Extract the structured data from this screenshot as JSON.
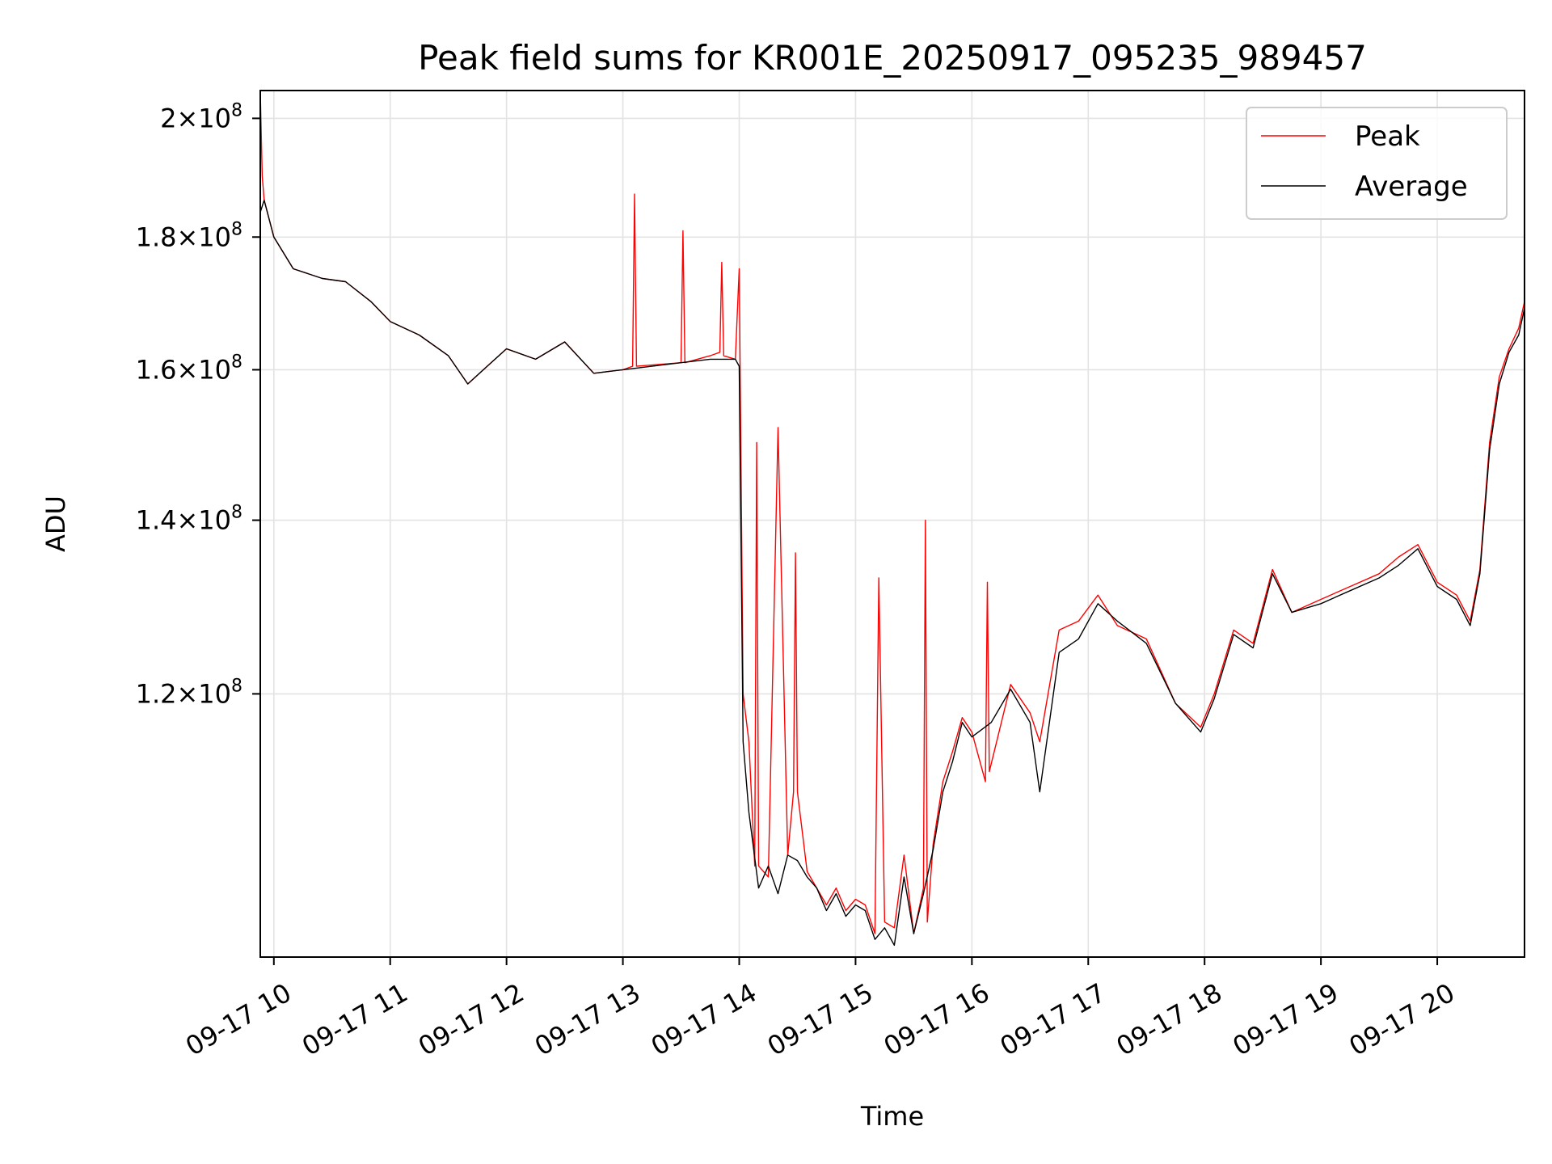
{
  "chart_data": {
    "type": "line",
    "title": "Peak field sums for KR001E_20250917_095235_989457",
    "xlabel": "Time",
    "ylabel": "ADU",
    "y_scale": "log",
    "grid": true,
    "legend_position": "top-right",
    "xlim": [
      "2025-09-17 09:53",
      "2025-09-17 20:45"
    ],
    "ylim": [
      95000000,
      205000000
    ],
    "x_ticks": [
      "09-17 10",
      "09-17 11",
      "09-17 12",
      "09-17 13",
      "09-17 14",
      "09-17 15",
      "09-17 16",
      "09-17 17",
      "09-17 18",
      "09-17 19",
      "09-17 20"
    ],
    "y_ticks": [
      {
        "value": 120000000,
        "mantissa": "1.2",
        "exponent": "8"
      },
      {
        "value": 140000000,
        "mantissa": "1.4",
        "exponent": "8"
      },
      {
        "value": 160000000,
        "mantissa": "1.6",
        "exponent": "8"
      },
      {
        "value": 180000000,
        "mantissa": "1.8",
        "exponent": "8"
      },
      {
        "value": 200000000,
        "mantissa": "2",
        "exponent": "8"
      }
    ],
    "series": [
      {
        "name": "Peak",
        "color": "#ff0000",
        "x": [
          "2025-09-17 09:53",
          "2025-09-17 09:54",
          "2025-09-17 09:55",
          "2025-09-17 10:00",
          "2025-09-17 10:10",
          "2025-09-17 10:25",
          "2025-09-17 10:37",
          "2025-09-17 10:50",
          "2025-09-17 11:00",
          "2025-09-17 11:15",
          "2025-09-17 11:30",
          "2025-09-17 11:40",
          "2025-09-17 11:50",
          "2025-09-17 12:00",
          "2025-09-17 12:15",
          "2025-09-17 12:30",
          "2025-09-17 12:45",
          "2025-09-17 13:00",
          "2025-09-17 13:05",
          "2025-09-17 13:06",
          "2025-09-17 13:07",
          "2025-09-17 13:30",
          "2025-09-17 13:31",
          "2025-09-17 13:32",
          "2025-09-17 13:45",
          "2025-09-17 13:50",
          "2025-09-17 13:51",
          "2025-09-17 13:52",
          "2025-09-17 13:58",
          "2025-09-17 14:00",
          "2025-09-17 14:02",
          "2025-09-17 14:05",
          "2025-09-17 14:08",
          "2025-09-17 14:09",
          "2025-09-17 14:10",
          "2025-09-17 14:15",
          "2025-09-17 14:20",
          "2025-09-17 14:25",
          "2025-09-17 14:28",
          "2025-09-17 14:29",
          "2025-09-17 14:30",
          "2025-09-17 14:35",
          "2025-09-17 14:40",
          "2025-09-17 14:45",
          "2025-09-17 14:50",
          "2025-09-17 14:55",
          "2025-09-17 15:00",
          "2025-09-17 15:05",
          "2025-09-17 15:10",
          "2025-09-17 15:12",
          "2025-09-17 15:15",
          "2025-09-17 15:20",
          "2025-09-17 15:25",
          "2025-09-17 15:30",
          "2025-09-17 15:35",
          "2025-09-17 15:36",
          "2025-09-17 15:37",
          "2025-09-17 15:40",
          "2025-09-17 15:45",
          "2025-09-17 15:50",
          "2025-09-17 15:55",
          "2025-09-17 16:00",
          "2025-09-17 16:07",
          "2025-09-17 16:08",
          "2025-09-17 16:09",
          "2025-09-17 16:20",
          "2025-09-17 16:30",
          "2025-09-17 16:35",
          "2025-09-17 16:45",
          "2025-09-17 16:55",
          "2025-09-17 17:05",
          "2025-09-17 17:15",
          "2025-09-17 17:30",
          "2025-09-17 17:45",
          "2025-09-17 17:58",
          "2025-09-17 18:05",
          "2025-09-17 18:15",
          "2025-09-17 18:25",
          "2025-09-17 18:35",
          "2025-09-17 18:45",
          "2025-09-17 19:00",
          "2025-09-17 19:15",
          "2025-09-17 19:30",
          "2025-09-17 19:40",
          "2025-09-17 19:50",
          "2025-09-17 20:00",
          "2025-09-17 20:10",
          "2025-09-17 20:17",
          "2025-09-17 20:22",
          "2025-09-17 20:27",
          "2025-09-17 20:32",
          "2025-09-17 20:37",
          "2025-09-17 20:42",
          "2025-09-17 20:45"
        ],
        "y": [
          205000000,
          190000000,
          186000000,
          180000000,
          175000000,
          173500000,
          173000000,
          170000000,
          167000000,
          165000000,
          162000000,
          158000000,
          160500000,
          163000000,
          161500000,
          164000000,
          159500000,
          160000000,
          160500000,
          187000000,
          160500000,
          161000000,
          181000000,
          161000000,
          162000000,
          162500000,
          176000000,
          162000000,
          161500000,
          175000000,
          120000000,
          115000000,
          103000000,
          150000000,
          103000000,
          102000000,
          152000000,
          104000000,
          110000000,
          136000000,
          110000000,
          102500000,
          101000000,
          99500000,
          101000000,
          99000000,
          100000000,
          99500000,
          97000000,
          133000000,
          98000000,
          97500000,
          104000000,
          97000000,
          101000000,
          140000000,
          98000000,
          105000000,
          111000000,
          114000000,
          117500000,
          116000000,
          111000000,
          132500000,
          112000000,
          121000000,
          118000000,
          115000000,
          127000000,
          128000000,
          131000000,
          127500000,
          126000000,
          119000000,
          116500000,
          120000000,
          127000000,
          125500000,
          134000000,
          129000000,
          130500000,
          132000000,
          133500000,
          135500000,
          137000000,
          132500000,
          131000000,
          128000000,
          134000000,
          150000000,
          159000000,
          163000000,
          166000000,
          170000000
        ]
      },
      {
        "name": "Average",
        "color": "#000000",
        "x": [
          "2025-09-17 09:53",
          "2025-09-17 09:55",
          "2025-09-17 10:00",
          "2025-09-17 10:10",
          "2025-09-17 10:25",
          "2025-09-17 10:37",
          "2025-09-17 10:50",
          "2025-09-17 11:00",
          "2025-09-17 11:15",
          "2025-09-17 11:30",
          "2025-09-17 11:40",
          "2025-09-17 11:50",
          "2025-09-17 12:00",
          "2025-09-17 12:15",
          "2025-09-17 12:30",
          "2025-09-17 12:45",
          "2025-09-17 13:00",
          "2025-09-17 13:15",
          "2025-09-17 13:30",
          "2025-09-17 13:45",
          "2025-09-17 13:58",
          "2025-09-17 14:00",
          "2025-09-17 14:02",
          "2025-09-17 14:05",
          "2025-09-17 14:10",
          "2025-09-17 14:15",
          "2025-09-17 14:20",
          "2025-09-17 14:25",
          "2025-09-17 14:30",
          "2025-09-17 14:35",
          "2025-09-17 14:40",
          "2025-09-17 14:45",
          "2025-09-17 14:50",
          "2025-09-17 14:55",
          "2025-09-17 15:00",
          "2025-09-17 15:05",
          "2025-09-17 15:10",
          "2025-09-17 15:15",
          "2025-09-17 15:20",
          "2025-09-17 15:25",
          "2025-09-17 15:30",
          "2025-09-17 15:35",
          "2025-09-17 15:40",
          "2025-09-17 15:45",
          "2025-09-17 15:50",
          "2025-09-17 15:55",
          "2025-09-17 16:00",
          "2025-09-17 16:10",
          "2025-09-17 16:20",
          "2025-09-17 16:30",
          "2025-09-17 16:35",
          "2025-09-17 16:45",
          "2025-09-17 16:55",
          "2025-09-17 17:05",
          "2025-09-17 17:15",
          "2025-09-17 17:30",
          "2025-09-17 17:45",
          "2025-09-17 17:58",
          "2025-09-17 18:05",
          "2025-09-17 18:15",
          "2025-09-17 18:25",
          "2025-09-17 18:35",
          "2025-09-17 18:45",
          "2025-09-17 19:00",
          "2025-09-17 19:15",
          "2025-09-17 19:30",
          "2025-09-17 19:40",
          "2025-09-17 19:50",
          "2025-09-17 20:00",
          "2025-09-17 20:10",
          "2025-09-17 20:17",
          "2025-09-17 20:22",
          "2025-09-17 20:27",
          "2025-09-17 20:32",
          "2025-09-17 20:37",
          "2025-09-17 20:42",
          "2025-09-17 20:45"
        ],
        "y": [
          184000000,
          186000000,
          180000000,
          175000000,
          173500000,
          173000000,
          170000000,
          167000000,
          165000000,
          162000000,
          158000000,
          160500000,
          163000000,
          161500000,
          164000000,
          159500000,
          160000000,
          160500000,
          161000000,
          161500000,
          161500000,
          160500000,
          115000000,
          108000000,
          101000000,
          103000000,
          100500000,
          104000000,
          103500000,
          102000000,
          101000000,
          99000000,
          100500000,
          98500000,
          99500000,
          99000000,
          96500000,
          97500000,
          96000000,
          102000000,
          97000000,
          100500000,
          104500000,
          110000000,
          113000000,
          117000000,
          115500000,
          117000000,
          120500000,
          117000000,
          110000000,
          124500000,
          126000000,
          130000000,
          128000000,
          125500000,
          119000000,
          116000000,
          119500000,
          126500000,
          125000000,
          133500000,
          129000000,
          130000000,
          131500000,
          133000000,
          134500000,
          136500000,
          132000000,
          130500000,
          127500000,
          133500000,
          149000000,
          158000000,
          162500000,
          165000000,
          169000000
        ]
      }
    ]
  }
}
